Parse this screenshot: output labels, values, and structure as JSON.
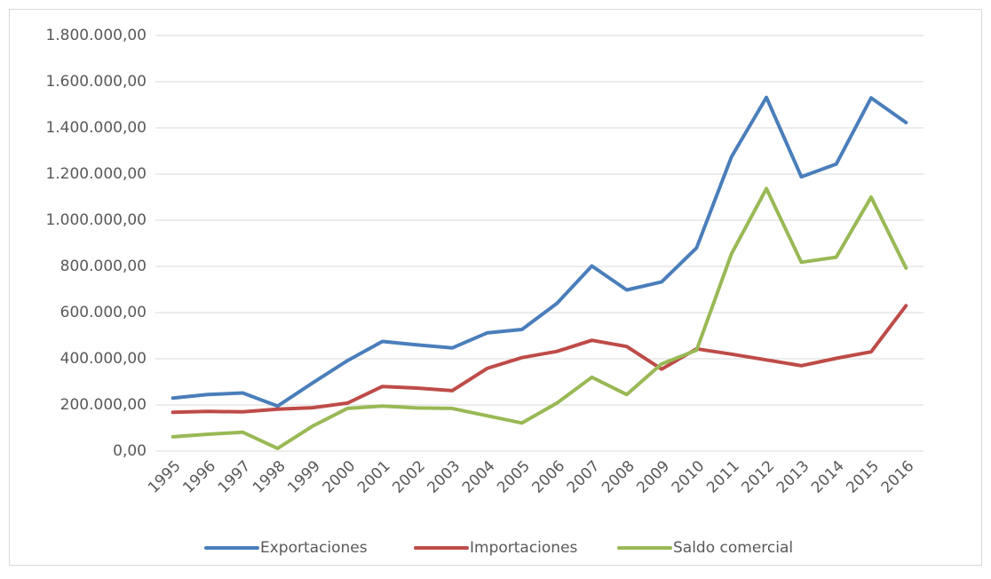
{
  "chart_data": {
    "type": "line",
    "categories": [
      "1995",
      "1996",
      "1997",
      "1998",
      "1999",
      "2000",
      "2001",
      "2002",
      "2003",
      "2004",
      "2005",
      "2006",
      "2007",
      "2008",
      "2009",
      "2010",
      "2011",
      "2012",
      "2013",
      "2014",
      "2015",
      "2016"
    ],
    "series": [
      {
        "name": "Exportaciones",
        "color": "#4a7ebb",
        "values": [
          230000,
          245000,
          252000,
          195000,
          295000,
          392000,
          475000,
          460000,
          447000,
          512000,
          527000,
          640000,
          802000,
          698000,
          733000,
          880000,
          1275000,
          1532000,
          1188000,
          1243000,
          1530000,
          1423000
        ]
      },
      {
        "name": "Importaciones",
        "color": "#be4b48",
        "values": [
          168000,
          172000,
          170000,
          182000,
          188000,
          208000,
          280000,
          273000,
          262000,
          358000,
          405000,
          432000,
          480000,
          453000,
          355000,
          443000,
          420000,
          395000,
          370000,
          402000,
          430000,
          630000
        ]
      },
      {
        "name": "Saldo comercial",
        "color": "#98b954",
        "values": [
          62000,
          73000,
          82000,
          12000,
          108000,
          185000,
          195000,
          187000,
          185000,
          153000,
          122000,
          208000,
          320000,
          245000,
          378000,
          437000,
          855000,
          1137000,
          818000,
          840000,
          1100000,
          793000
        ]
      }
    ],
    "ylim": [
      0,
      1800000
    ],
    "yticks": [
      {
        "value": 0,
        "label": "0,00"
      },
      {
        "value": 200000,
        "label": "200.000,00"
      },
      {
        "value": 400000,
        "label": "400.000,00"
      },
      {
        "value": 600000,
        "label": "600.000,00"
      },
      {
        "value": 800000,
        "label": "800.000,00"
      },
      {
        "value": 1000000,
        "label": "1.000.000,00"
      },
      {
        "value": 1200000,
        "label": "1.200.000,00"
      },
      {
        "value": 1400000,
        "label": "1.400.000,00"
      },
      {
        "value": 1600000,
        "label": "1.600.000,00"
      },
      {
        "value": 1800000,
        "label": "1.800.000,00"
      }
    ],
    "grid": true,
    "legend": "bottom"
  }
}
